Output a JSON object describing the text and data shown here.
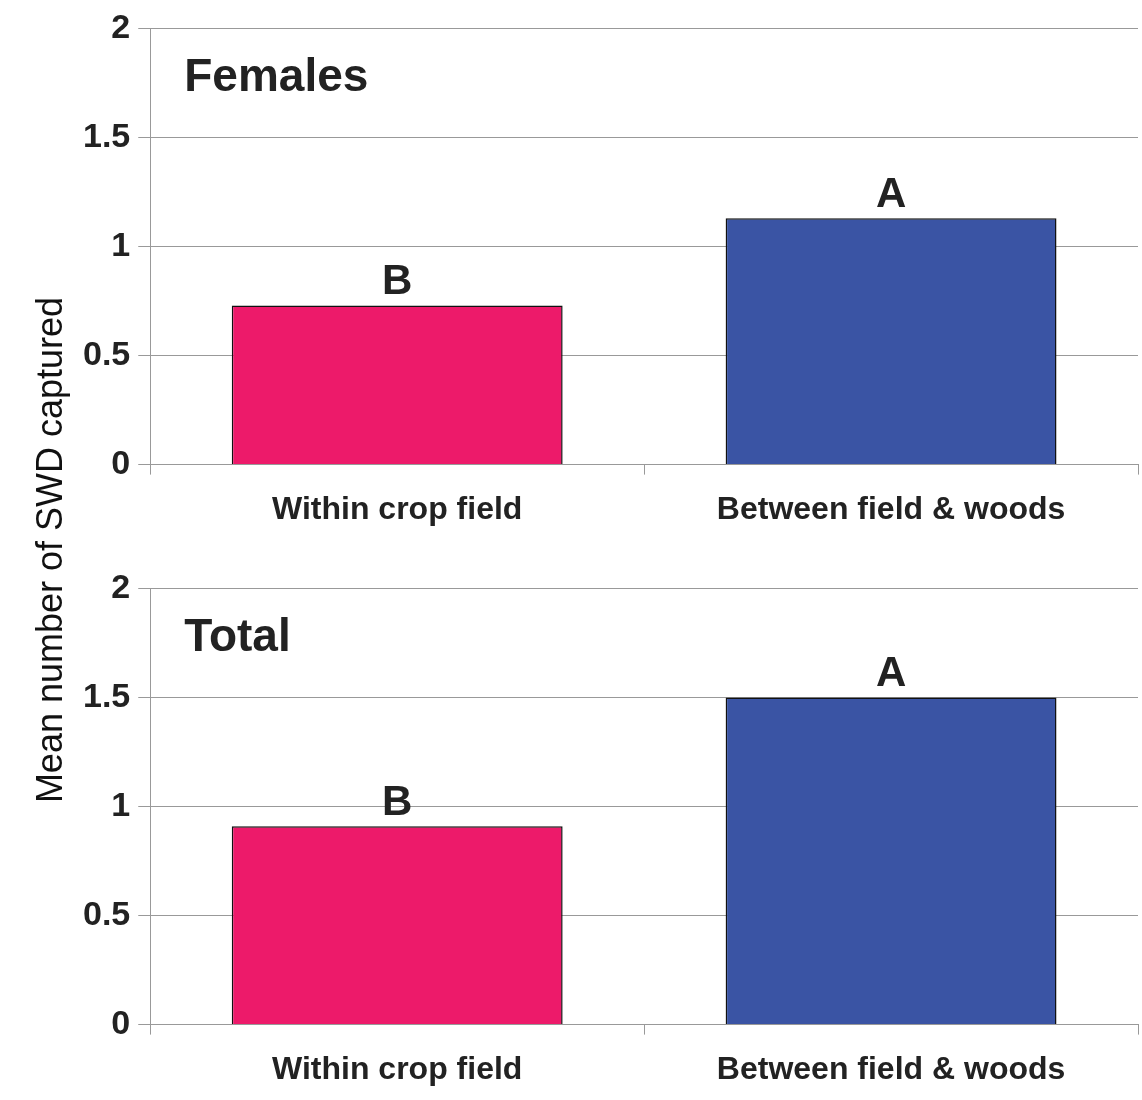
{
  "chart_data": [
    {
      "type": "bar",
      "title": "Females",
      "ylabel": "Mean number of SWD captured",
      "categories": [
        "Within crop field",
        "Between field & woods"
      ],
      "colors": [
        "#ed1a6a",
        "#3a54a4"
      ],
      "values": [
        0.73,
        1.13
      ],
      "ylim": [
        0,
        2
      ],
      "yticks": [
        0,
        0.5,
        1,
        1.5,
        2
      ],
      "grid": "y",
      "legend": false,
      "annotations": [
        {
          "text": "B",
          "x": "Within crop field",
          "y": 0.73
        },
        {
          "text": "A",
          "x": "Between field & woods",
          "y": 1.13
        }
      ]
    },
    {
      "type": "bar",
      "title": "Total",
      "categories": [
        "Within crop field",
        "Between field & woods"
      ],
      "colors": [
        "#ed1a6a",
        "#3a54a4"
      ],
      "values": [
        0.91,
        1.5
      ],
      "ylim": [
        0,
        2
      ],
      "yticks": [
        0,
        0.5,
        1,
        1.5,
        2
      ],
      "grid": "y",
      "legend": false,
      "annotations": [
        {
          "text": "B",
          "x": "Within crop field",
          "y": 0.91
        },
        {
          "text": "A",
          "x": "Between field & woods",
          "y": 1.5
        }
      ]
    }
  ]
}
